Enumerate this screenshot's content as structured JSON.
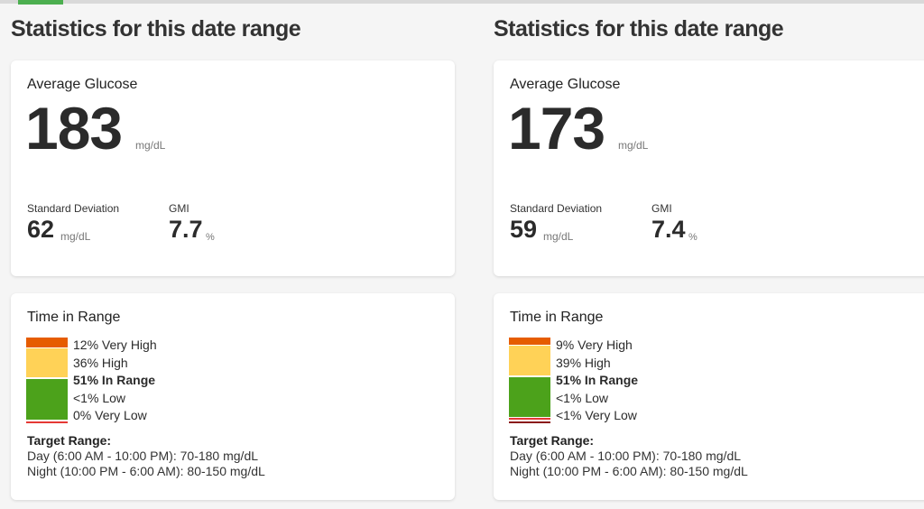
{
  "colors": {
    "very_high": "#e65c00",
    "high": "#ffd257",
    "in_range": "#4ca21b",
    "low": "#e53935",
    "very_low": "#8b1a1a",
    "accent": "#4caf50"
  },
  "panels": [
    {
      "section_title": "Statistics for this date range",
      "avg": {
        "label": "Average Glucose",
        "value": "183",
        "unit": "mg/dL"
      },
      "sd": {
        "label": "Standard Deviation",
        "value": "62",
        "unit": "mg/dL"
      },
      "gmi": {
        "label": "GMI",
        "value": "7.7",
        "unit": "%"
      },
      "tir": {
        "title": "Time in Range",
        "rows": [
          {
            "pct": "12%",
            "label": "Very High",
            "bold": false
          },
          {
            "pct": "36%",
            "label": "High",
            "bold": false
          },
          {
            "pct": "51%",
            "label": "In Range",
            "bold": true
          },
          {
            "pct": "<1%",
            "label": "Low",
            "bold": false
          },
          {
            "pct": "0%",
            "label": "Very Low",
            "bold": false
          }
        ],
        "fractions": {
          "very_high": 0.12,
          "high": 0.36,
          "in_range": 0.51,
          "low": 0.01,
          "very_low": 0.0
        },
        "target_title": "Target Range:",
        "target_day": "Day (6:00 AM - 10:00 PM): 70-180 mg/dL",
        "target_night": "Night (10:00 PM - 6:00 AM): 80-150 mg/dL"
      }
    },
    {
      "section_title": "Statistics for this date range",
      "avg": {
        "label": "Average Glucose",
        "value": "173",
        "unit": "mg/dL"
      },
      "sd": {
        "label": "Standard Deviation",
        "value": "59",
        "unit": "mg/dL"
      },
      "gmi": {
        "label": "GMI",
        "value": "7.4",
        "unit": "%"
      },
      "tir": {
        "title": "Time in Range",
        "rows": [
          {
            "pct": "9%",
            "label": "Very High",
            "bold": false
          },
          {
            "pct": "39%",
            "label": "High",
            "bold": false
          },
          {
            "pct": "51%",
            "label": "In Range",
            "bold": true
          },
          {
            "pct": "<1%",
            "label": "Low",
            "bold": false
          },
          {
            "pct": "<1%",
            "label": "Very Low",
            "bold": false
          }
        ],
        "fractions": {
          "very_high": 0.09,
          "high": 0.39,
          "in_range": 0.51,
          "low": 0.005,
          "very_low": 0.005
        },
        "target_title": "Target Range:",
        "target_day": "Day (6:00 AM - 10:00 PM): 70-180 mg/dL",
        "target_night": "Night (10:00 PM - 6:00 AM): 80-150 mg/dL"
      }
    }
  ]
}
